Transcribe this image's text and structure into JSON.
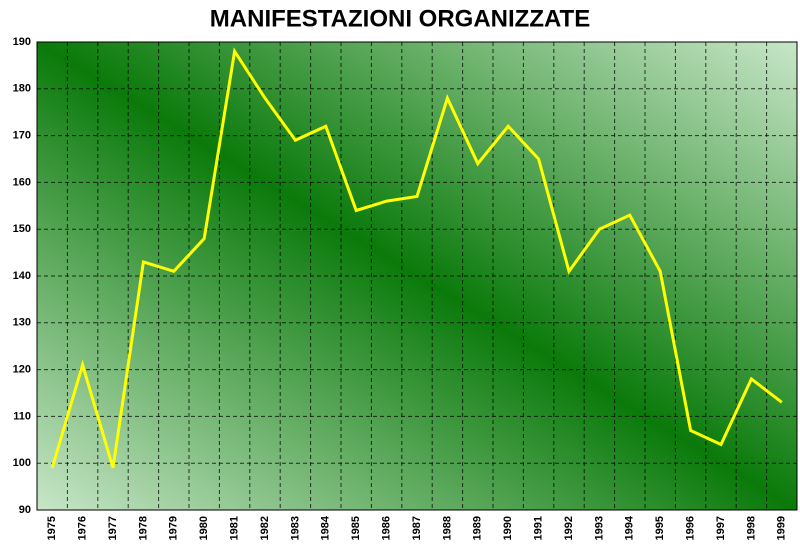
{
  "chart_data": {
    "type": "line",
    "title": "MANIFESTAZIONI ORGANIZZATE",
    "categories": [
      "1975",
      "1976",
      "1977",
      "1978",
      "1979",
      "1980",
      "1981",
      "1982",
      "1983",
      "1984",
      "1985",
      "1986",
      "1987",
      "1988",
      "1989",
      "1990",
      "1991",
      "1992",
      "1993",
      "1994",
      "1995",
      "1996",
      "1997",
      "1998",
      "1999"
    ],
    "series": [
      {
        "color": "#ffff00",
        "values": [
          99,
          121,
          99,
          143,
          141,
          148,
          188,
          178,
          169,
          172,
          154,
          156,
          157,
          178,
          164,
          172,
          165,
          141,
          150,
          153,
          141,
          107,
          104,
          118,
          113
        ]
      }
    ],
    "ylim": [
      90,
      190
    ],
    "yticks": [
      90,
      100,
      110,
      120,
      130,
      140,
      150,
      160,
      170,
      180,
      190
    ],
    "grid": true
  }
}
